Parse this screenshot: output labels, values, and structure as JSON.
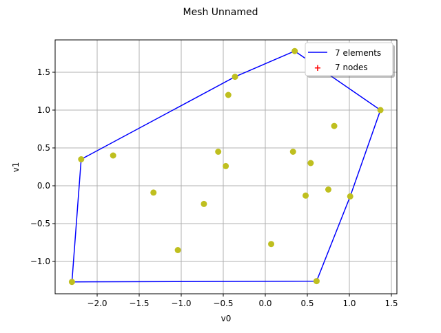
{
  "chart_data": {
    "type": "line",
    "title": "Mesh Unnamed",
    "xlabel": "v0",
    "ylabel": "v1",
    "xlim": [
      -2.49,
      1.56
    ],
    "ylim": [
      -1.42,
      1.91
    ],
    "grid": true,
    "xticks": [
      "−2.0",
      "−1.5",
      "−1.0",
      "−0.5",
      "0.0",
      "0.5",
      "1.0",
      "1.5"
    ],
    "xtick_values": [
      -2.0,
      -1.5,
      -1.0,
      -0.5,
      0.0,
      0.5,
      1.0,
      1.5
    ],
    "yticks": [
      "−1.0",
      "−0.5",
      "0.0",
      "0.5",
      "1.0",
      "1.5"
    ],
    "ytick_values": [
      -1.0,
      -0.5,
      0.0,
      0.5,
      1.0,
      1.5
    ],
    "legend": {
      "position": "upper right",
      "entries": [
        {
          "label": "7 elements",
          "color": "#0000ff",
          "marker": "line"
        },
        {
          "label": "7 nodes",
          "color": "#ff0000",
          "marker": "+"
        }
      ]
    },
    "series": [
      {
        "name": "7 elements",
        "type": "line",
        "color": "#0000ff",
        "x": [
          -2.3,
          -2.19,
          -0.36,
          0.35,
          1.37,
          1.01,
          0.61,
          -2.3
        ],
        "y": [
          -1.27,
          0.35,
          1.44,
          1.78,
          1.0,
          -0.14,
          -1.26,
          -1.27
        ]
      },
      {
        "name": "points",
        "type": "scatter",
        "color": "#bfbf1f",
        "x": [
          -2.3,
          -2.19,
          -0.36,
          0.35,
          1.37,
          1.01,
          0.61,
          -1.81,
          -0.44,
          -0.56,
          -0.47,
          -1.33,
          -0.73,
          -1.04,
          0.07,
          0.33,
          0.54,
          0.82,
          0.75,
          0.48
        ],
        "y": [
          -1.27,
          0.35,
          1.44,
          1.78,
          1.0,
          -0.14,
          -1.26,
          0.4,
          1.2,
          0.45,
          0.26,
          -0.09,
          -0.24,
          -0.85,
          -0.77,
          0.45,
          0.3,
          0.79,
          -0.05,
          -0.13
        ]
      }
    ]
  }
}
